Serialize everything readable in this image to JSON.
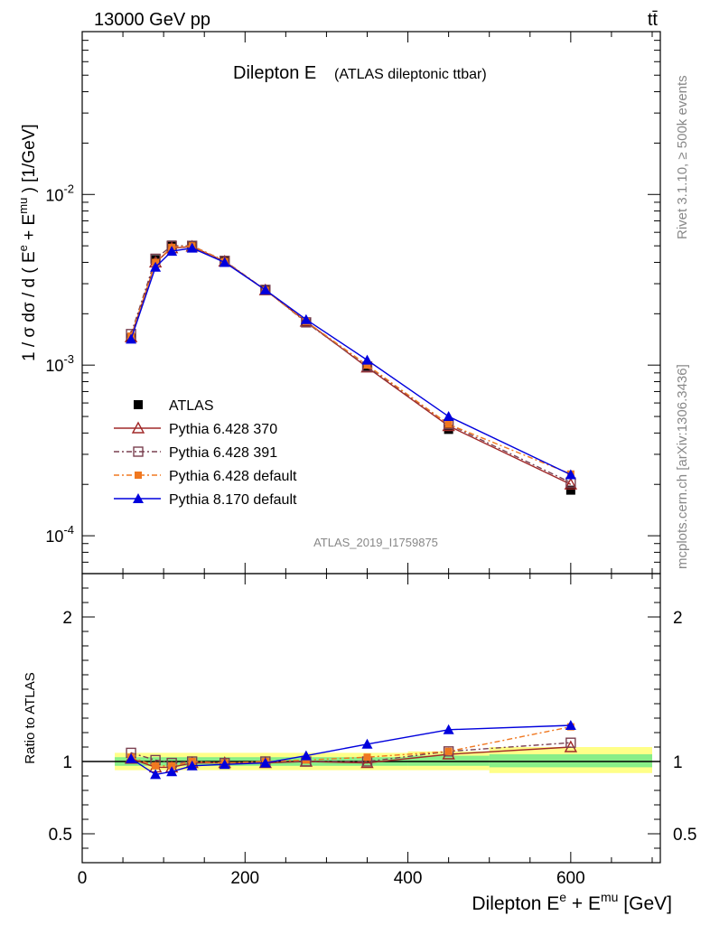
{
  "header": {
    "left": "13000 GeV pp",
    "right": "tt̄"
  },
  "side_label_rivet": "Rivet 3.1.10, ≥ 500k events",
  "side_label_mcplots": "mcplots.cern.ch [arXiv:1306.3436]",
  "analysis_id": "ATLAS_2019_I1759875",
  "chart_data": [
    {
      "type": "line",
      "title": "Dilepton E",
      "subtitle": "(ATLAS dileptonic ttbar)",
      "xlabel": "Dilepton E^e + E^mu [GeV]",
      "ylabel": "1 / σ dσ / d ( E^e + E^mu ) [1/GeV]",
      "xlim": [
        0,
        710
      ],
      "ylim": [
        6e-05,
        0.09
      ],
      "yscale": "log",
      "x_ticks": [
        "0",
        "200",
        "400",
        "600"
      ],
      "y_ticks": [
        "10^-4",
        "10^-3",
        "10^-2"
      ],
      "legend_position": "lower-left",
      "x": [
        60,
        90,
        110,
        135,
        175,
        225,
        275,
        350,
        450,
        600
      ],
      "series": [
        {
          "name": "ATLAS",
          "color": "#000000",
          "marker": "square",
          "values": [
            0.00144,
            0.00415,
            0.00505,
            0.005,
            0.0041,
            0.00276,
            0.00178,
            0.00098,
            0.00042,
            0.000185
          ]
        },
        {
          "name": "Pythia 6.428 370",
          "color": "#a02828",
          "marker": "open-triangle",
          "values": [
            0.00146,
            0.004,
            0.00485,
            0.00495,
            0.00405,
            0.00275,
            0.0018,
            0.00097,
            0.00044,
            0.0002
          ]
        },
        {
          "name": "Pythia 6.428 391",
          "color": "#7a4050",
          "marker": "open-square",
          "values": [
            0.00152,
            0.0042,
            0.005,
            0.005,
            0.00408,
            0.00276,
            0.00178,
            0.00098,
            0.00045,
            0.000205
          ]
        },
        {
          "name": "Pythia 6.428 default",
          "color": "#f07820",
          "marker": "filled-square",
          "values": [
            0.00148,
            0.004,
            0.0049,
            0.005,
            0.00405,
            0.00275,
            0.0018,
            0.001,
            0.00045,
            0.00023
          ]
        },
        {
          "name": "Pythia 8.170 default",
          "color": "#0000dd",
          "marker": "filled-triangle",
          "values": [
            0.00142,
            0.00375,
            0.00465,
            0.00485,
            0.004,
            0.00276,
            0.00185,
            0.00107,
            0.0005,
            0.000228
          ]
        }
      ]
    },
    {
      "type": "line",
      "ylabel": "Ratio to ATLAS",
      "xlim": [
        0,
        710
      ],
      "ylim": [
        0.3,
        2.3
      ],
      "y_ticks": [
        "0.5",
        "1",
        "2"
      ],
      "x": [
        60,
        90,
        110,
        135,
        175,
        225,
        275,
        350,
        450,
        600
      ],
      "band_stat": [
        {
          "x": [
            40,
            400
          ],
          "lo": 0.97,
          "hi": 1.03
        },
        {
          "x": [
            400,
            500
          ],
          "lo": 0.97,
          "hi": 1.04
        },
        {
          "x": [
            500,
            700
          ],
          "lo": 0.96,
          "hi": 1.05
        }
      ],
      "band_total": [
        {
          "x": [
            40,
            400
          ],
          "lo": 0.94,
          "hi": 1.06
        },
        {
          "x": [
            400,
            500
          ],
          "lo": 0.94,
          "hi": 1.07
        },
        {
          "x": [
            500,
            700
          ],
          "lo": 0.92,
          "hi": 1.1
        }
      ],
      "series": [
        {
          "name": "Pythia 6.428 370",
          "values": [
            1.02,
            0.96,
            0.96,
            0.99,
            0.99,
            0.99,
            1.0,
            0.99,
            1.05,
            1.1
          ]
        },
        {
          "name": "Pythia 6.428 391",
          "values": [
            1.06,
            1.01,
            0.99,
            1.0,
            0.99,
            1.0,
            1.0,
            1.0,
            1.07,
            1.13
          ]
        },
        {
          "name": "Pythia 6.428 default",
          "values": [
            1.03,
            0.97,
            0.97,
            1.0,
            0.99,
            1.0,
            1.01,
            1.03,
            1.07,
            1.24
          ]
        },
        {
          "name": "Pythia 8.170 default",
          "values": [
            1.02,
            0.91,
            0.93,
            0.97,
            0.98,
            0.99,
            1.04,
            1.12,
            1.22,
            1.25
          ]
        }
      ]
    }
  ]
}
